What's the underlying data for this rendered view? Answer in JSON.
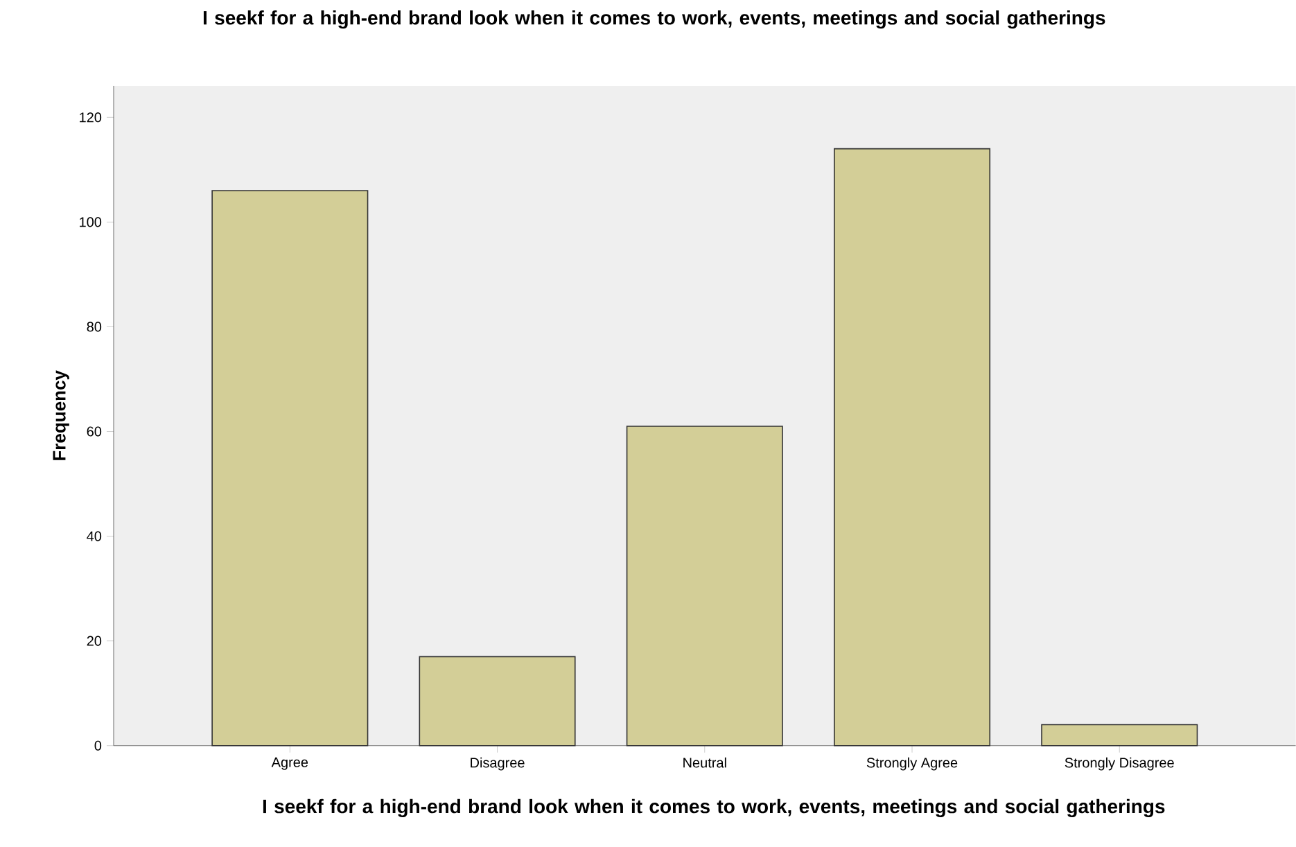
{
  "chart_data": {
    "type": "bar",
    "title": "I seekf for a high-end brand look when it comes to work, events, meetings and social gatherings",
    "xlabel": "I seekf for a high-end brand look when it comes to work, events, meetings and social gatherings",
    "ylabel": "Frequency",
    "categories": [
      "Agree",
      "Disagree",
      "Neutral",
      "Strongly Agree",
      "Strongly Disagree"
    ],
    "values": [
      106,
      17,
      61,
      114,
      4
    ],
    "color": "#d3ce97",
    "ylim": [
      0,
      126
    ],
    "yticks": [
      0,
      20,
      40,
      60,
      80,
      100,
      120
    ],
    "grid": false
  }
}
